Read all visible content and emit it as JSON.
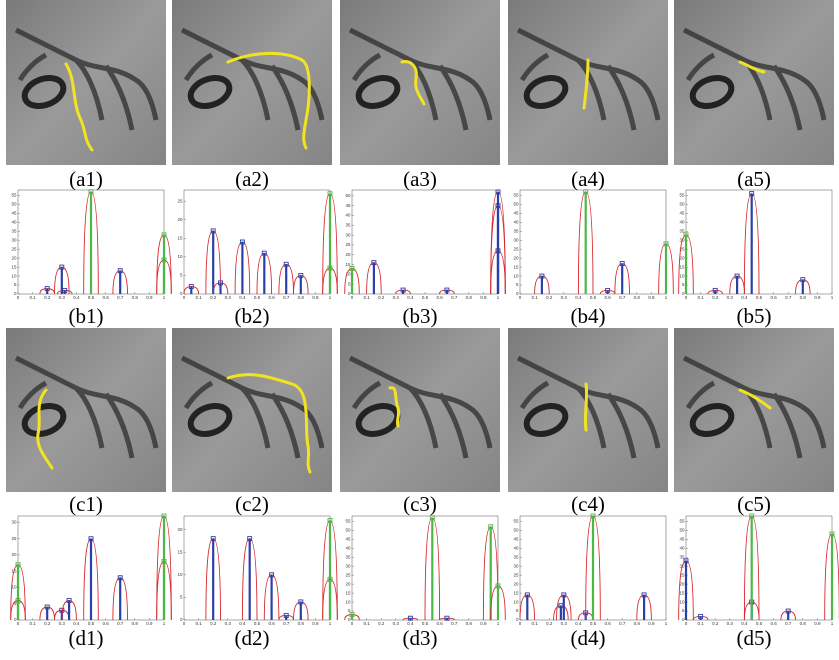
{
  "rows": [
    {
      "panels": [
        {
          "caption": "(a1)"
        },
        {
          "caption": "(a2)"
        },
        {
          "caption": "(a3)"
        },
        {
          "caption": "(a4)"
        },
        {
          "caption": "(a5)"
        }
      ]
    },
    {
      "panels": [
        {
          "caption": "(b1)",
          "plot": {
            "xlim": [
              0,
              1
            ],
            "ylim": [
              0,
              58
            ],
            "xticks": [
              0,
              0.1,
              0.2,
              0.3,
              0.4,
              0.5,
              0.6,
              0.7,
              0.8,
              0.9,
              1
            ],
            "yticks": [
              0,
              5,
              10,
              15,
              20,
              25,
              30,
              35,
              40,
              45,
              50,
              55
            ],
            "series": [
              {
                "color": "#2b3fa8",
                "x": [
                  0.2,
                  0.3,
                  0.32,
                  0.7
                ],
                "values": [
                  3,
                  15,
                  2,
                  13
                ]
              },
              {
                "color": "#4cb848",
                "x": [
                  0.5,
                  1,
                  1
                ],
                "values": [
                  57,
                  33,
                  19
                ]
              }
            ]
          }
        },
        {
          "caption": "(b2)",
          "plot": {
            "xlim": [
              0,
              1
            ],
            "ylim": [
              0,
              28
            ],
            "xticks": [
              0,
              0.1,
              0.2,
              0.3,
              0.4,
              0.5,
              0.6,
              0.7,
              0.8,
              0.9,
              1
            ],
            "yticks": [
              0,
              5,
              10,
              15,
              20,
              25
            ],
            "series": [
              {
                "color": "#2b3fa8",
                "x": [
                  0.05,
                  0.2,
                  0.25,
                  0.4,
                  0.55,
                  0.7,
                  0.8
                ],
                "values": [
                  2,
                  17,
                  3,
                  14,
                  11,
                  8,
                  5
                ]
              },
              {
                "color": "#4cb848",
                "x": [
                  1,
                  1
                ],
                "values": [
                  27,
                  7
                ]
              }
            ]
          }
        },
        {
          "caption": "(b3)",
          "plot": {
            "xlim": [
              0,
              1
            ],
            "ylim": [
              0,
              53
            ],
            "xticks": [
              0,
              0.1,
              0.2,
              0.3,
              0.4,
              0.5,
              0.6,
              0.7,
              0.8,
              0.9,
              1
            ],
            "yticks": [
              0,
              5,
              10,
              15,
              20,
              25,
              30,
              35,
              40,
              45,
              50
            ],
            "series": [
              {
                "color": "#2b3fa8",
                "x": [
                  0.15,
                  0.35,
                  0.65,
                  1,
                  1,
                  1
                ],
                "values": [
                  16,
                  2,
                  2,
                  52,
                  45,
                  22
                ]
              },
              {
                "color": "#4cb848",
                "x": [
                  0
                ],
                "values": [
                  13
                ]
              }
            ]
          }
        },
        {
          "caption": "(b4)",
          "plot": {
            "xlim": [
              0,
              1
            ],
            "ylim": [
              0,
              58
            ],
            "xticks": [
              0,
              0.1,
              0.2,
              0.3,
              0.4,
              0.5,
              0.6,
              0.7,
              0.8,
              0.9,
              1
            ],
            "yticks": [
              0,
              5,
              10,
              15,
              20,
              25,
              30,
              35,
              40,
              45,
              50,
              55
            ],
            "series": [
              {
                "color": "#2b3fa8",
                "x": [
                  0.15,
                  0.6,
                  0.7
                ],
                "values": [
                  10,
                  2,
                  17
                ]
              },
              {
                "color": "#4cb848",
                "x": [
                  0.45,
                  1
                ],
                "values": [
                  57,
                  28
                ]
              }
            ]
          }
        },
        {
          "caption": "(b5)",
          "plot": {
            "xlim": [
              0,
              1
            ],
            "ylim": [
              0,
              58
            ],
            "xticks": [
              0,
              0.1,
              0.2,
              0.3,
              0.4,
              0.5,
              0.6,
              0.7,
              0.8,
              0.9,
              1
            ],
            "yticks": [
              0,
              5,
              10,
              15,
              20,
              25,
              30,
              35,
              40,
              45,
              50,
              55
            ],
            "series": [
              {
                "color": "#2b3fa8",
                "x": [
                  0.2,
                  0.35,
                  0.45,
                  0.8
                ],
                "values": [
                  2,
                  10,
                  56,
                  8
                ]
              },
              {
                "color": "#4cb848",
                "x": [
                  0
                ],
                "values": [
                  33
                ]
              }
            ]
          }
        }
      ]
    },
    {
      "panels": [
        {
          "caption": "(c1)"
        },
        {
          "caption": "(c2)"
        },
        {
          "caption": "(c3)"
        },
        {
          "caption": "(c4)"
        },
        {
          "caption": "(c5)"
        }
      ]
    },
    {
      "panels": [
        {
          "caption": "(d1)",
          "plot": {
            "xlim": [
              0,
              1
            ],
            "ylim": [
              0,
              32
            ],
            "xticks": [
              0,
              0.1,
              0.2,
              0.3,
              0.4,
              0.5,
              0.6,
              0.7,
              0.8,
              0.9,
              1
            ],
            "yticks": [
              0,
              5,
              10,
              15,
              20,
              25,
              30
            ],
            "series": [
              {
                "color": "#2b3fa8",
                "x": [
                  0.2,
                  0.3,
                  0.35,
                  0.5,
                  0.7
                ],
                "values": [
                  4,
                  3,
                  6,
                  25,
                  13
                ]
              },
              {
                "color": "#4cb848",
                "x": [
                  0,
                  0,
                  1,
                  1
                ],
                "values": [
                  17,
                  6,
                  32,
                  18
                ]
              }
            ]
          }
        },
        {
          "caption": "(d2)",
          "plot": {
            "xlim": [
              0,
              1
            ],
            "ylim": [
              0,
              23
            ],
            "xticks": [
              0,
              0.1,
              0.2,
              0.3,
              0.4,
              0.5,
              0.6,
              0.7,
              0.8,
              0.9,
              1
            ],
            "yticks": [
              0,
              5,
              10,
              15,
              20
            ],
            "series": [
              {
                "color": "#2b3fa8",
                "x": [
                  0.2,
                  0.45,
                  0.6,
                  0.7,
                  0.8
                ],
                "values": [
                  18,
                  18,
                  10,
                  1,
                  4
                ]
              },
              {
                "color": "#4cb848",
                "x": [
                  1,
                  1
                ],
                "values": [
                  22,
                  9
                ]
              }
            ]
          }
        },
        {
          "caption": "(d3)",
          "plot": {
            "xlim": [
              0,
              1
            ],
            "ylim": [
              0,
              58
            ],
            "xticks": [
              0,
              0.1,
              0.2,
              0.3,
              0.4,
              0.5,
              0.6,
              0.7,
              0.8,
              0.9,
              1
            ],
            "yticks": [
              0,
              5,
              10,
              15,
              20,
              25,
              30,
              35,
              40,
              45,
              50,
              55
            ],
            "series": [
              {
                "color": "#2b3fa8",
                "x": [
                  0.4,
                  0.65
                ],
                "values": [
                  1,
                  1
                ]
              },
              {
                "color": "#4cb848",
                "x": [
                  0,
                  0.55,
                  0.95,
                  1
                ],
                "values": [
                  3,
                  57,
                  52,
                  19
                ]
              }
            ]
          }
        },
        {
          "caption": "(d4)",
          "plot": {
            "xlim": [
              0,
              1
            ],
            "ylim": [
              0,
              58
            ],
            "xticks": [
              0,
              0.1,
              0.2,
              0.3,
              0.4,
              0.5,
              0.6,
              0.7,
              0.8,
              0.9,
              1
            ],
            "yticks": [
              0,
              5,
              10,
              15,
              20,
              25,
              30,
              35,
              40,
              45,
              50,
              55
            ],
            "series": [
              {
                "color": "#2b3fa8",
                "x": [
                  0.05,
                  0.28,
                  0.3,
                  0.45,
                  0.85
                ],
                "values": [
                  14,
                  8,
                  14,
                  4,
                  14
                ]
              },
              {
                "color": "#4cb848",
                "x": [
                  0.5
                ],
                "values": [
                  58
                ]
              }
            ]
          }
        },
        {
          "caption": "(d5)",
          "plot": {
            "xlim": [
              0,
              1
            ],
            "ylim": [
              0,
              58
            ],
            "xticks": [
              0,
              0.1,
              0.2,
              0.3,
              0.4,
              0.5,
              0.6,
              0.7,
              0.8,
              0.9,
              1
            ],
            "yticks": [
              0,
              5,
              10,
              15,
              20,
              25,
              30,
              35,
              40,
              45,
              50,
              55
            ],
            "series": [
              {
                "color": "#2b3fa8",
                "x": [
                  0,
                  0.1,
                  0.45,
                  0.7
                ],
                "values": [
                  33,
                  2,
                  10,
                  5
                ]
              },
              {
                "color": "#4cb848",
                "x": [
                  0.45,
                  1
                ],
                "values": [
                  58,
                  48
                ]
              }
            ]
          }
        }
      ]
    }
  ]
}
